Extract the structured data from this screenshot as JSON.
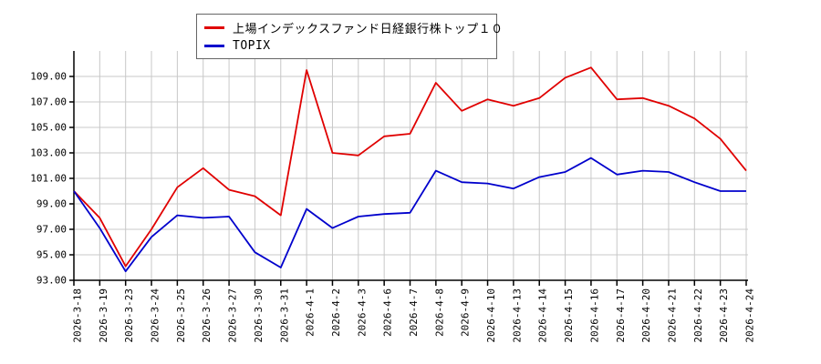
{
  "page": {
    "background": "#ffffff"
  },
  "chart_data": {
    "type": "line",
    "title": "",
    "xlabel": "",
    "ylabel": "",
    "x_labels": [
      "2026-3-18",
      "2026-3-19",
      "2026-3-23",
      "2026-3-24",
      "2026-3-25",
      "2026-3-26",
      "2026-3-27",
      "2026-3-30",
      "2026-3-31",
      "2026-4-1",
      "2026-4-2",
      "2026-4-3",
      "2026-4-6",
      "2026-4-7",
      "2026-4-8",
      "2026-4-9",
      "2026-4-10",
      "2026-4-13",
      "2026-4-14",
      "2026-4-15",
      "2026-4-16",
      "2026-4-17",
      "2026-4-20",
      "2026-4-21",
      "2026-4-22",
      "2026-4-23",
      "2026-4-24"
    ],
    "series": [
      {
        "name": "上場インデックスファンド日経銀行株トップ１０",
        "color": "#e00000",
        "values": [
          100.0,
          97.9,
          94.1,
          97.0,
          100.3,
          101.8,
          100.1,
          99.6,
          98.1,
          109.5,
          103.0,
          102.8,
          104.3,
          104.5,
          108.5,
          106.3,
          107.2,
          106.7,
          107.3,
          108.9,
          109.7,
          107.2,
          107.3,
          106.7,
          105.7,
          104.1,
          101.6
        ]
      },
      {
        "name": "TOPIX",
        "color": "#0000cc",
        "values": [
          100.0,
          97.1,
          93.7,
          96.4,
          98.1,
          97.9,
          98.0,
          95.2,
          94.0,
          98.6,
          97.1,
          98.0,
          98.2,
          98.3,
          101.6,
          100.7,
          100.6,
          100.2,
          101.1,
          101.5,
          102.6,
          101.3,
          101.6,
          101.5,
          100.7,
          100.0,
          100.0
        ]
      }
    ],
    "ylim": [
      93,
      109
    ],
    "y_tick_step": 2,
    "y_tick_labels": [
      "109.00",
      "107.00",
      "105.00",
      "103.00",
      "101.00",
      "99.00",
      "97.00",
      "95.00",
      "93.00"
    ],
    "grid": true,
    "grid_color": "#c8c8c8",
    "axis_color": "#000000",
    "legend_position": "top-center"
  }
}
